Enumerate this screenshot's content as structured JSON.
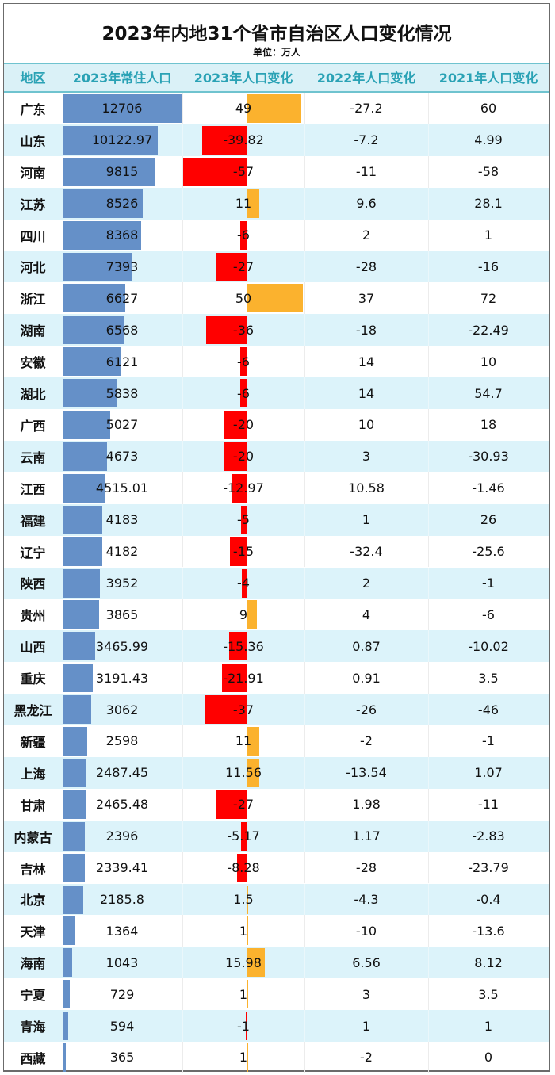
{
  "title": "2023年内地31个省市自治区人口变化情况",
  "subtitle": "单位：万人",
  "columns": [
    "地区",
    "2023年常住人口",
    "2023年人口变化",
    "2022年人口变化",
    "2021年人口变化"
  ],
  "colors": {
    "header_bg": "#daf1f7",
    "header_text": "#2aa2b5",
    "alt_row_bg": "#dcf3fa",
    "population_bar": "#6590c8",
    "positive_change_bar": "#fbb22e",
    "negative_change_bar": "#ff0000"
  },
  "rows": [
    {
      "region": "广东",
      "pop2023": "12706",
      "ch2023": "49",
      "ch2022": "-27.2",
      "ch2021": "60"
    },
    {
      "region": "山东",
      "pop2023": "10122.97",
      "ch2023": "-39.82",
      "ch2022": "-7.2",
      "ch2021": "4.99"
    },
    {
      "region": "河南",
      "pop2023": "9815",
      "ch2023": "-57",
      "ch2022": "-11",
      "ch2021": "-58"
    },
    {
      "region": "江苏",
      "pop2023": "8526",
      "ch2023": "11",
      "ch2022": "9.6",
      "ch2021": "28.1"
    },
    {
      "region": "四川",
      "pop2023": "8368",
      "ch2023": "-6",
      "ch2022": "2",
      "ch2021": "1"
    },
    {
      "region": "河北",
      "pop2023": "7393",
      "ch2023": "-27",
      "ch2022": "-28",
      "ch2021": "-16"
    },
    {
      "region": "浙江",
      "pop2023": "6627",
      "ch2023": "50",
      "ch2022": "37",
      "ch2021": "72"
    },
    {
      "region": "湖南",
      "pop2023": "6568",
      "ch2023": "-36",
      "ch2022": "-18",
      "ch2021": "-22.49"
    },
    {
      "region": "安徽",
      "pop2023": "6121",
      "ch2023": "-6",
      "ch2022": "14",
      "ch2021": "10"
    },
    {
      "region": "湖北",
      "pop2023": "5838",
      "ch2023": "-6",
      "ch2022": "14",
      "ch2021": "54.7"
    },
    {
      "region": "广西",
      "pop2023": "5027",
      "ch2023": "-20",
      "ch2022": "10",
      "ch2021": "18"
    },
    {
      "region": "云南",
      "pop2023": "4673",
      "ch2023": "-20",
      "ch2022": "3",
      "ch2021": "-30.93"
    },
    {
      "region": "江西",
      "pop2023": "4515.01",
      "ch2023": "-12.97",
      "ch2022": "10.58",
      "ch2021": "-1.46"
    },
    {
      "region": "福建",
      "pop2023": "4183",
      "ch2023": "-5",
      "ch2022": "1",
      "ch2021": "26"
    },
    {
      "region": "辽宁",
      "pop2023": "4182",
      "ch2023": "-15",
      "ch2022": "-32.4",
      "ch2021": "-25.6"
    },
    {
      "region": "陕西",
      "pop2023": "3952",
      "ch2023": "-4",
      "ch2022": "2",
      "ch2021": "-1"
    },
    {
      "region": "贵州",
      "pop2023": "3865",
      "ch2023": "9",
      "ch2022": "4",
      "ch2021": "-6"
    },
    {
      "region": "山西",
      "pop2023": "3465.99",
      "ch2023": "-15.36",
      "ch2022": "0.87",
      "ch2021": "-10.02"
    },
    {
      "region": "重庆",
      "pop2023": "3191.43",
      "ch2023": "-21.91",
      "ch2022": "0.91",
      "ch2021": "3.5"
    },
    {
      "region": "黑龙江",
      "pop2023": "3062",
      "ch2023": "-37",
      "ch2022": "-26",
      "ch2021": "-46"
    },
    {
      "region": "新疆",
      "pop2023": "2598",
      "ch2023": "11",
      "ch2022": "-2",
      "ch2021": "-1"
    },
    {
      "region": "上海",
      "pop2023": "2487.45",
      "ch2023": "11.56",
      "ch2022": "-13.54",
      "ch2021": "1.07"
    },
    {
      "region": "甘肃",
      "pop2023": "2465.48",
      "ch2023": "-27",
      "ch2022": "1.98",
      "ch2021": "-11"
    },
    {
      "region": "内蒙古",
      "pop2023": "2396",
      "ch2023": "-5.17",
      "ch2022": "1.17",
      "ch2021": "-2.83"
    },
    {
      "region": "吉林",
      "pop2023": "2339.41",
      "ch2023": "-8.28",
      "ch2022": "-28",
      "ch2021": "-23.79"
    },
    {
      "region": "北京",
      "pop2023": "2185.8",
      "ch2023": "1.5",
      "ch2022": "-4.3",
      "ch2021": "-0.4"
    },
    {
      "region": "天津",
      "pop2023": "1364",
      "ch2023": "1",
      "ch2022": "-10",
      "ch2021": "-13.6"
    },
    {
      "region": "海南",
      "pop2023": "1043",
      "ch2023": "15.98",
      "ch2022": "6.56",
      "ch2021": "8.12"
    },
    {
      "region": "宁夏",
      "pop2023": "729",
      "ch2023": "1",
      "ch2022": "3",
      "ch2021": "3.5"
    },
    {
      "region": "青海",
      "pop2023": "594",
      "ch2023": "-1",
      "ch2022": "1",
      "ch2021": "1"
    },
    {
      "region": "西藏",
      "pop2023": "365",
      "ch2023": "1",
      "ch2022": "-2",
      "ch2021": "0"
    }
  ],
  "chart_data": {
    "type": "table",
    "title": "2023年内地31个省市自治区人口变化情况",
    "subtitle": "单位：万人",
    "categories": [
      "广东",
      "山东",
      "河南",
      "江苏",
      "四川",
      "河北",
      "浙江",
      "湖南",
      "安徽",
      "湖北",
      "广西",
      "云南",
      "江西",
      "福建",
      "辽宁",
      "陕西",
      "贵州",
      "山西",
      "重庆",
      "黑龙江",
      "新疆",
      "上海",
      "甘肃",
      "内蒙古",
      "吉林",
      "北京",
      "天津",
      "海南",
      "宁夏",
      "青海",
      "西藏"
    ],
    "series": [
      {
        "name": "2023年常住人口",
        "display": "data-bar",
        "values": [
          12706,
          10122.97,
          9815,
          8526,
          8368,
          7393,
          6627,
          6568,
          6121,
          5838,
          5027,
          4673,
          4515.01,
          4183,
          4182,
          3952,
          3865,
          3465.99,
          3191.43,
          3062,
          2598,
          2487.45,
          2465.48,
          2396,
          2339.41,
          2185.8,
          1364,
          1043,
          729,
          594,
          365
        ]
      },
      {
        "name": "2023年人口变化",
        "display": "diverging-data-bar",
        "values": [
          49,
          -39.82,
          -57,
          11,
          -6,
          -27,
          50,
          -36,
          -6,
          -6,
          -20,
          -20,
          -12.97,
          -5,
          -15,
          -4,
          9,
          -15.36,
          -21.91,
          -37,
          11,
          11.56,
          -27,
          -5.17,
          -8.28,
          1.5,
          1,
          15.98,
          1,
          -1,
          1
        ]
      },
      {
        "name": "2022年人口变化",
        "display": "text",
        "values": [
          -27.2,
          -7.2,
          -11,
          9.6,
          2,
          -28,
          37,
          -18,
          14,
          14,
          10,
          3,
          10.58,
          1,
          -32.4,
          2,
          4,
          0.87,
          0.91,
          -26,
          -2,
          -13.54,
          1.98,
          1.17,
          -28,
          -4.3,
          -10,
          6.56,
          3,
          1,
          -2
        ]
      },
      {
        "name": "2021年人口变化",
        "display": "text",
        "values": [
          60,
          4.99,
          -58,
          28.1,
          1,
          -16,
          72,
          -22.49,
          10,
          54.7,
          18,
          -30.93,
          -1.46,
          26,
          -25.6,
          -1,
          -6,
          -10.02,
          3.5,
          -46,
          -1,
          1.07,
          -11,
          -2.83,
          -23.79,
          -0.4,
          -13.6,
          8.12,
          3.5,
          1,
          0
        ]
      }
    ],
    "legend": [],
    "grid": false
  }
}
